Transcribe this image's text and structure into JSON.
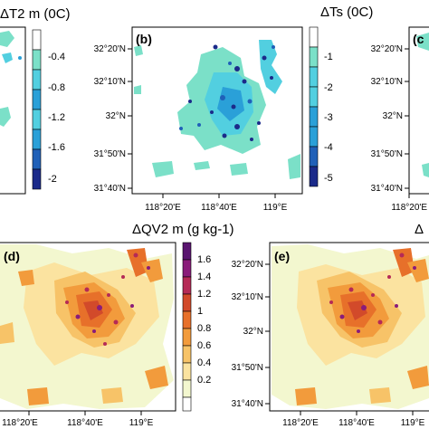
{
  "colors": {
    "blue_scale": [
      "#ffffff",
      "#7be0c8",
      "#52cfe0",
      "#2aa0d8",
      "#2060b8",
      "#1b2a8a",
      "#1a1a6a"
    ],
    "warm_scale": [
      "#ffffff",
      "#f3f7cf",
      "#fbe3a0",
      "#f7c368",
      "#f29b3c",
      "#e7702a",
      "#d24a2a",
      "#b52a56",
      "#8a1c7a",
      "#5a1570"
    ]
  },
  "chart_data": [
    {
      "type": "heatmap",
      "panel": "a",
      "title": "ΔT2 m (0C)",
      "colorbar_ticks": [
        "-0.4",
        "-0.8",
        "-1.2",
        "-1.6",
        "-2"
      ]
    },
    {
      "type": "heatmap",
      "panel": "b",
      "label": "(b)",
      "title": "ΔTs (0C)",
      "x_ticks": [
        "118°20'E",
        "118°40'E",
        "119°E"
      ],
      "y_ticks": [
        "32°20'N",
        "32°10'N",
        "32°N",
        "31°50'N",
        "31°40'N"
      ],
      "colorbar_ticks": [
        "-1",
        "-2",
        "-3",
        "-4",
        "-5"
      ]
    },
    {
      "type": "heatmap",
      "panel": "c",
      "label": "(c",
      "x_ticks": [
        "118°20'E"
      ],
      "y_ticks": [
        "32°20'N",
        "32°10'N",
        "32°N",
        "31°50'N",
        "31°40'N"
      ]
    },
    {
      "type": "heatmap",
      "panel": "d",
      "label": "(d)",
      "title": "ΔQV2 m (g kg-1)",
      "x_ticks": [
        "118°20'E",
        "118°40'E",
        "119°E"
      ],
      "colorbar_ticks": [
        "1.6",
        "1.4",
        "1.2",
        "1",
        "0.8",
        "0.6",
        "0.4",
        "0.2"
      ]
    },
    {
      "type": "heatmap",
      "panel": "e",
      "label": "(e)",
      "title": "Δ",
      "x_ticks": [
        "118°20'E",
        "118°40'E",
        "119°E"
      ],
      "y_ticks": [
        "32°20'N",
        "32°10'N",
        "32°N",
        "31°50'N",
        "31°40'N"
      ]
    }
  ]
}
